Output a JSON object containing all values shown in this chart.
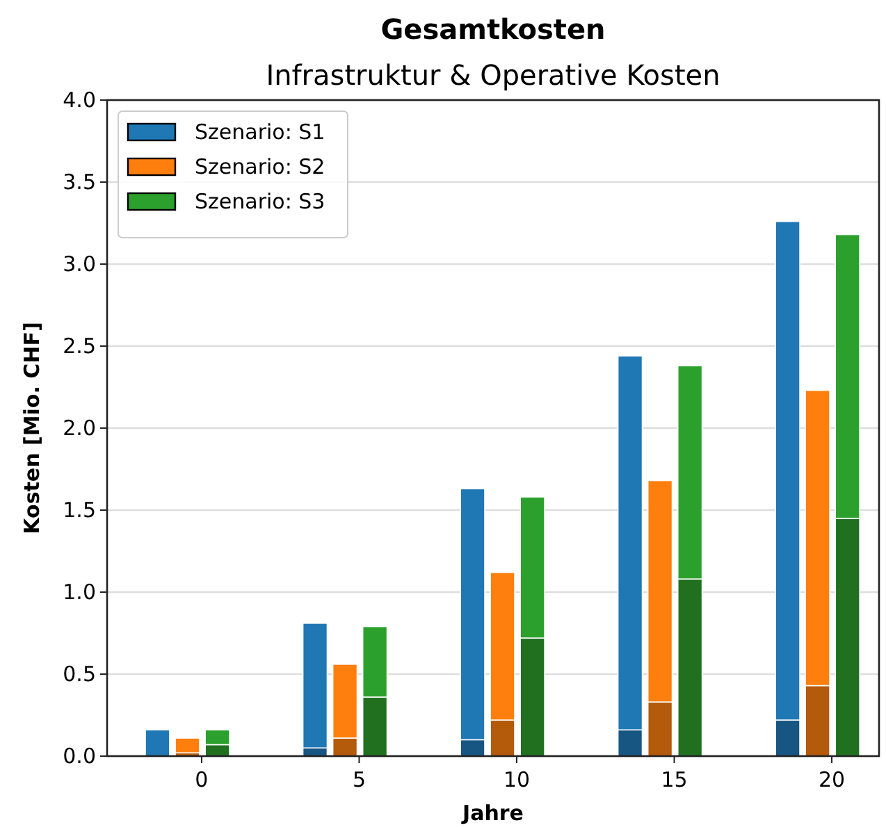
{
  "chart_data": {
    "type": "bar",
    "title": "Gesamtkosten",
    "subtitle": "Infrastruktur & Operative Kosten",
    "xlabel": "Jahre",
    "ylabel": "Kosten [Mio. CHF]",
    "stacked": true,
    "grid": "y",
    "legend": "top left",
    "xlim": [
      -3,
      21.5
    ],
    "xticks": [
      0,
      5,
      10,
      15,
      20
    ],
    "ylim": [
      0,
      4
    ],
    "yticks": [
      {
        "value": 0,
        "label": "0.0"
      },
      {
        "value": 0.5,
        "label": "0.5"
      },
      {
        "value": 1,
        "label": "1.0"
      },
      {
        "value": 1.5,
        "label": "1.5"
      },
      {
        "value": 2,
        "label": "2.0"
      },
      {
        "value": 2.5,
        "label": "2.5"
      },
      {
        "value": 3,
        "label": "3.0"
      },
      {
        "value": 3.5,
        "label": "3.5"
      },
      {
        "value": 4,
        "label": "4.0"
      }
    ],
    "x": [
      -1.4,
      -0.45,
      0.5,
      3.6,
      4.55,
      5.5,
      8.6,
      9.55,
      10.5,
      13.6,
      14.55,
      15.5,
      18.6,
      19.55,
      20.5
    ],
    "series": [
      {
        "color": "#175682",
        "values": [
          0,
          null,
          null,
          0.05,
          null,
          null,
          0.1,
          null,
          null,
          0.16,
          null,
          null,
          0.22,
          null,
          null
        ]
      },
      {
        "name": "Szenario: S1",
        "color": "#1f77b4",
        "values": [
          0.16,
          null,
          null,
          0.76,
          null,
          null,
          1.53,
          null,
          null,
          2.28,
          null,
          null,
          3.04,
          null,
          null
        ]
      },
      {
        "color": "#b35a0b",
        "values": [
          null,
          0.02,
          null,
          null,
          0.11,
          null,
          null,
          0.22,
          null,
          null,
          0.33,
          null,
          null,
          0.43,
          null
        ]
      },
      {
        "name": "Szenario: S2",
        "color": "#ff7f0e",
        "values": [
          null,
          0.09,
          null,
          null,
          0.45,
          null,
          null,
          0.9,
          null,
          null,
          1.35,
          null,
          null,
          1.8,
          null
        ]
      },
      {
        "color": "#20701f",
        "values": [
          null,
          null,
          0.07,
          null,
          null,
          0.36,
          null,
          null,
          0.72,
          null,
          null,
          1.08,
          null,
          null,
          1.45
        ]
      },
      {
        "name": "Szenario: S3",
        "color": "#2ca02c",
        "values": [
          null,
          null,
          0.09,
          null,
          null,
          0.43,
          null,
          null,
          0.86,
          null,
          null,
          1.3,
          null,
          null,
          1.73
        ]
      }
    ]
  }
}
